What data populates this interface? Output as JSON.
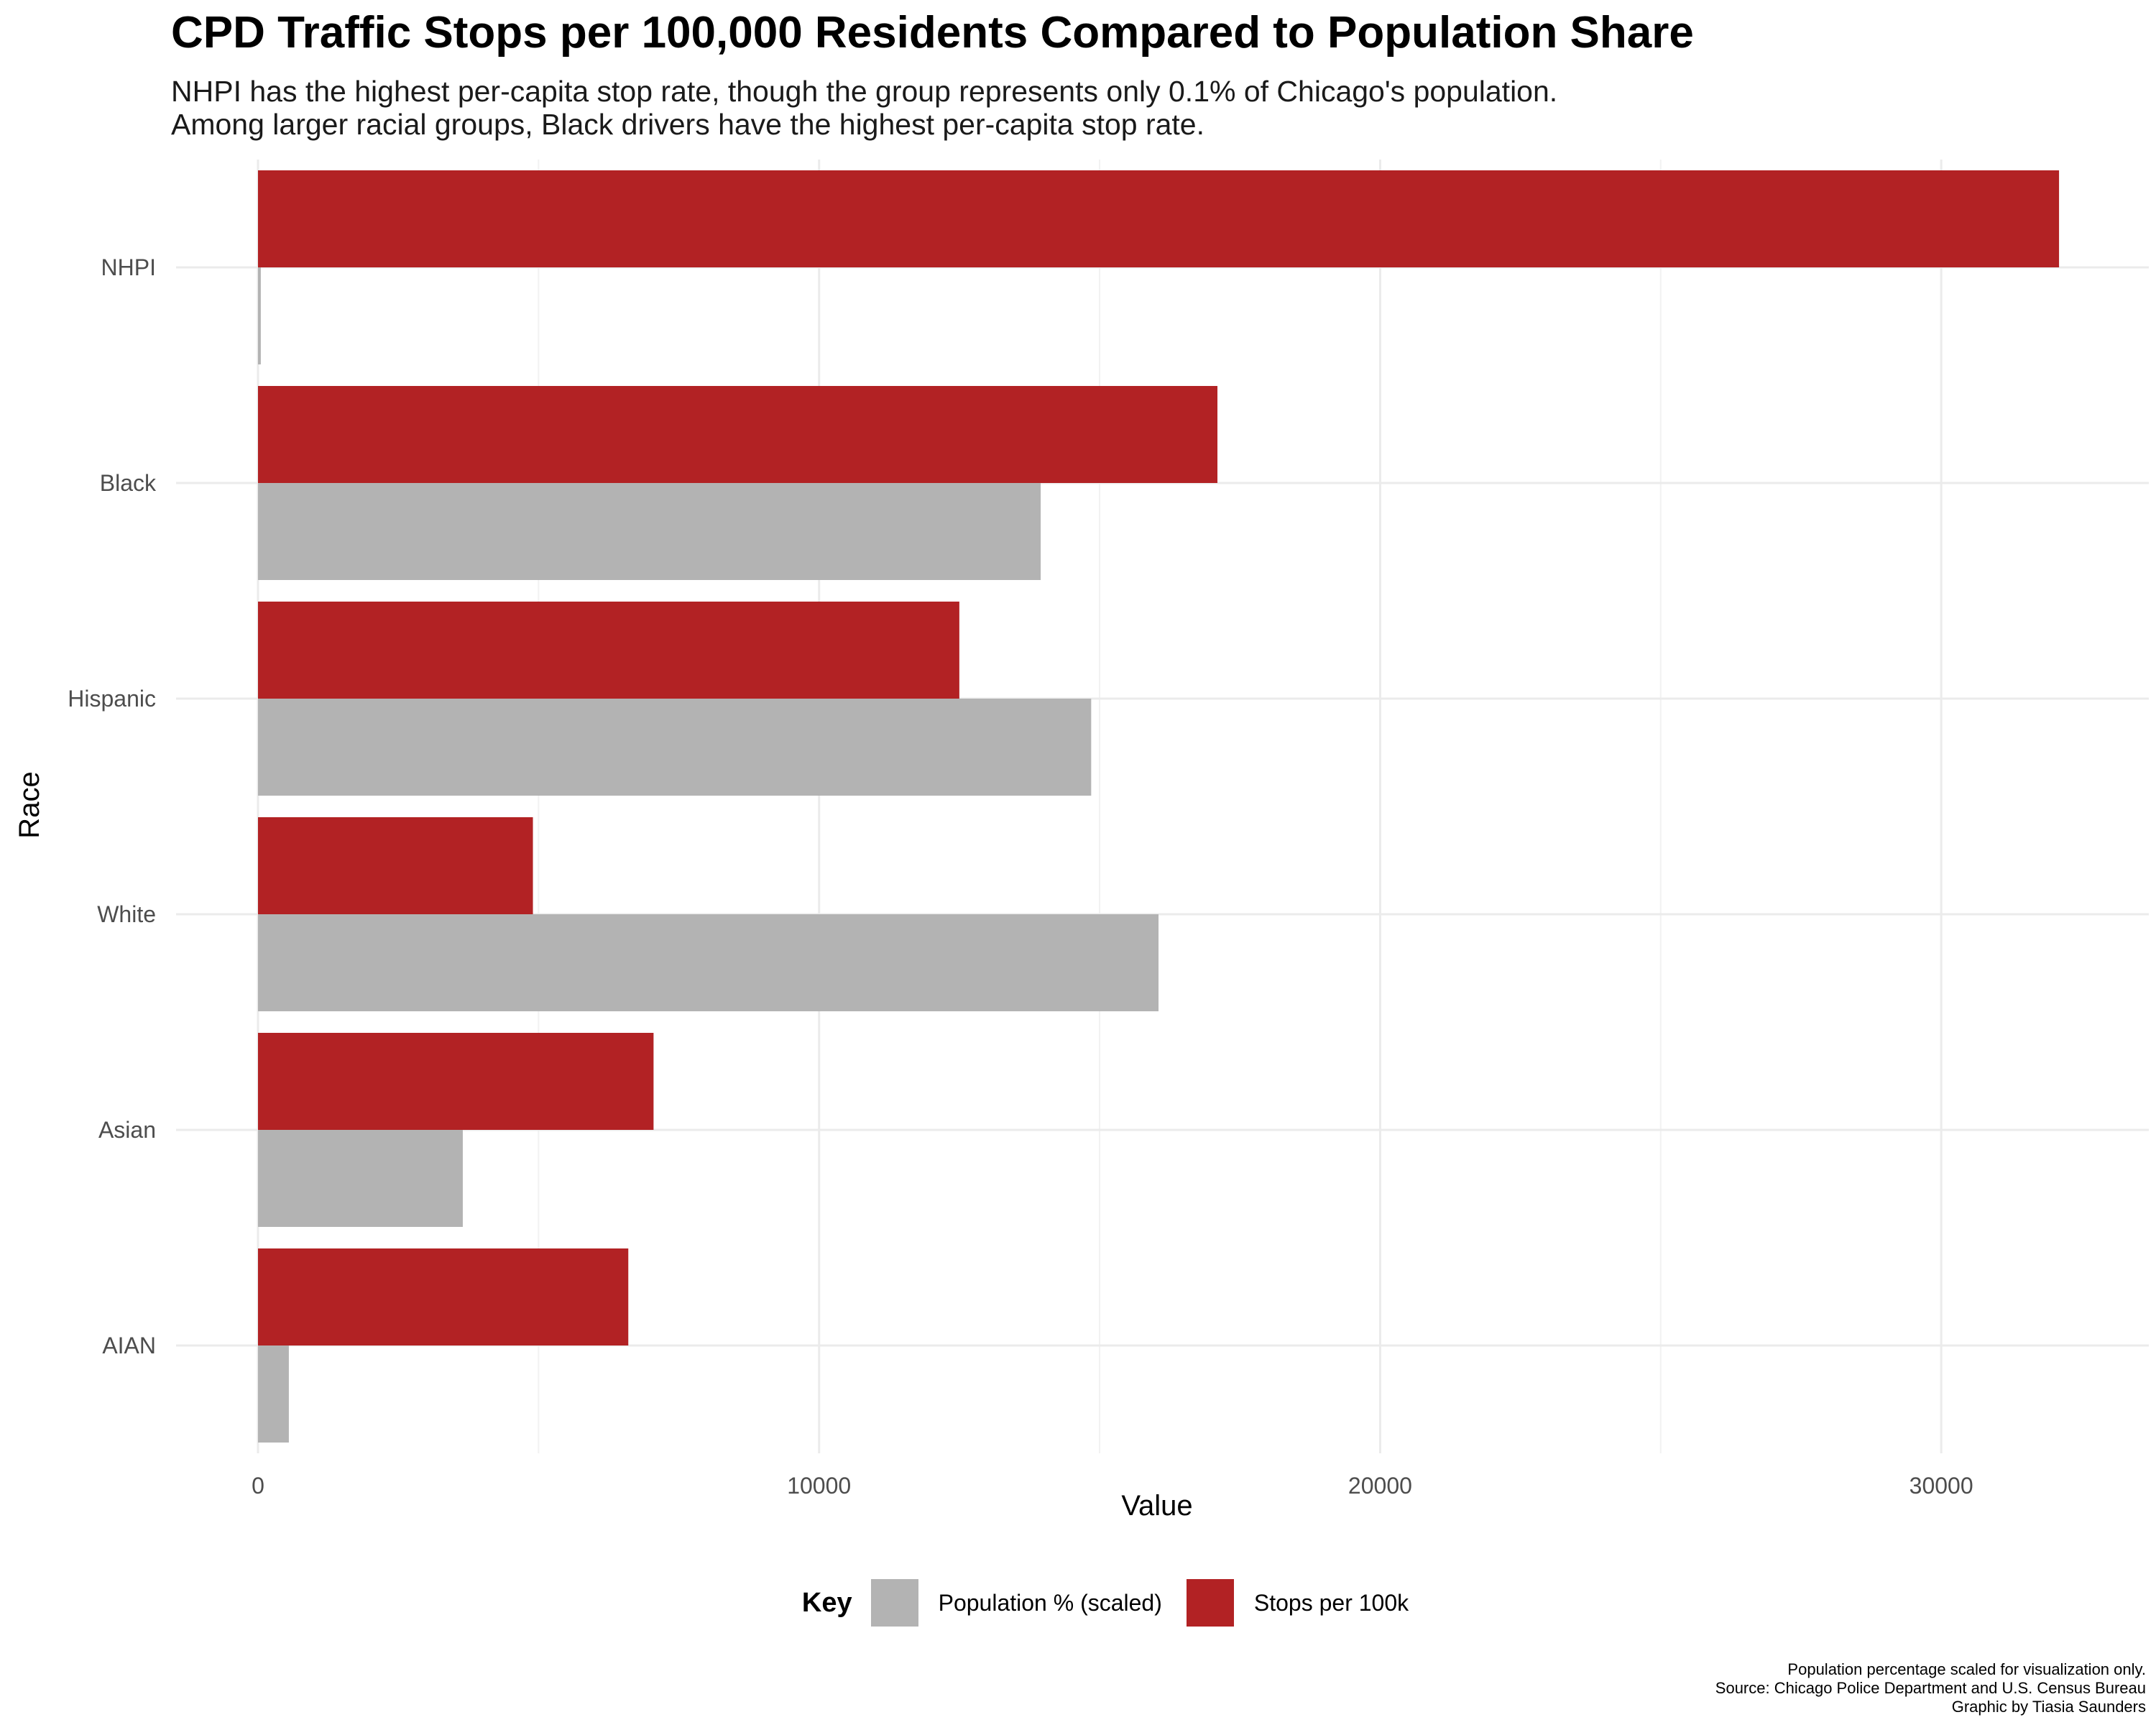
{
  "colors": {
    "stops": "#B22224",
    "population": "#B3B3B3",
    "grid_major": "#EBEBEB",
    "grid_minor": "#F2F2F2"
  },
  "chart_data": {
    "type": "bar",
    "orientation": "horizontal",
    "title": "CPD Traffic Stops per 100,000 Residents Compared to Population Share",
    "subtitle": [
      "NHPI has the highest per-capita stop rate, though the group represents only 0.1% of Chicago's population.",
      "Among larger racial groups, Black drivers have the highest per-capita stop rate."
    ],
    "xlabel": "Value",
    "ylabel": "Race",
    "categories": [
      "NHPI",
      "Black",
      "Hispanic",
      "White",
      "Asian",
      "AIAN"
    ],
    "series": [
      {
        "name": "Stops per 100k",
        "color": "#B22224",
        "values": [
          32100,
          17100,
          12500,
          4900,
          7050,
          6600
        ]
      },
      {
        "name": "Population % (scaled)",
        "color": "#B3B3B3",
        "values": [
          50,
          13950,
          14850,
          16050,
          3650,
          550
        ]
      }
    ],
    "xlim": [
      -1460,
      33700
    ],
    "xticks": [
      0,
      10000,
      20000,
      30000
    ],
    "xtick_labels": [
      "0",
      "10000",
      "20000",
      "30000"
    ],
    "grid": true,
    "legend": {
      "title": "Key",
      "position": "bottom",
      "entries": [
        {
          "label": "Population % (scaled)",
          "color": "#B3B3B3"
        },
        {
          "label": "Stops per 100k",
          "color": "#B22224"
        }
      ]
    },
    "caption": [
      "Population percentage scaled for visualization only.",
      "Source: Chicago Police Department and U.S. Census Bureau",
      "Graphic by Tiasia Saunders"
    ]
  }
}
